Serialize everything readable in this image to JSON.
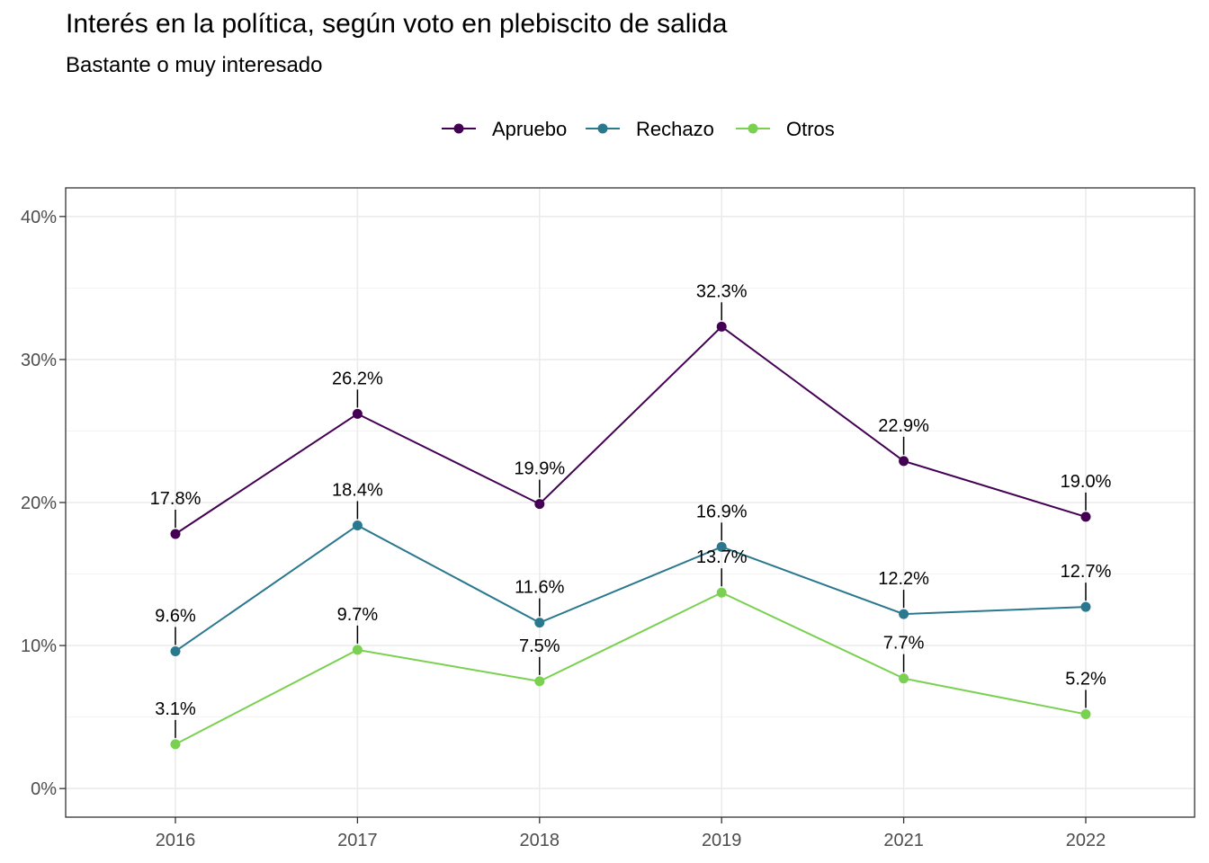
{
  "chart_data": {
    "type": "line",
    "title": "Interés en la política, según voto en plebiscito de salida",
    "subtitle": "Bastante o muy interesado",
    "categories": [
      "2016",
      "2017",
      "2018",
      "2019",
      "2021",
      "2022"
    ],
    "series": [
      {
        "name": "Apruebo",
        "color": "#440154",
        "values": [
          17.8,
          26.2,
          19.9,
          32.3,
          22.9,
          19.0
        ],
        "labels": [
          "17.8%",
          "26.2%",
          "19.9%",
          "32.3%",
          "22.9%",
          "19.0%"
        ]
      },
      {
        "name": "Rechazo",
        "color": "#2a788e",
        "values": [
          9.6,
          18.4,
          11.6,
          16.9,
          12.2,
          12.7
        ],
        "labels": [
          "9.6%",
          "18.4%",
          "11.6%",
          "16.9%",
          "12.2%",
          "12.7%"
        ]
      },
      {
        "name": "Otros",
        "color": "#7ad151",
        "values": [
          3.1,
          9.7,
          7.5,
          13.7,
          7.7,
          5.2
        ],
        "labels": [
          "3.1%",
          "9.7%",
          "7.5%",
          "13.7%",
          "7.7%",
          "5.2%"
        ]
      }
    ],
    "y_ticks": [
      0,
      10,
      20,
      30,
      40
    ],
    "y_tick_labels": [
      "0%",
      "10%",
      "20%",
      "30%",
      "40%"
    ],
    "ylim": [
      -2,
      42
    ],
    "xlabel": "",
    "ylabel": "",
    "grid": true,
    "legend_position": "top"
  }
}
